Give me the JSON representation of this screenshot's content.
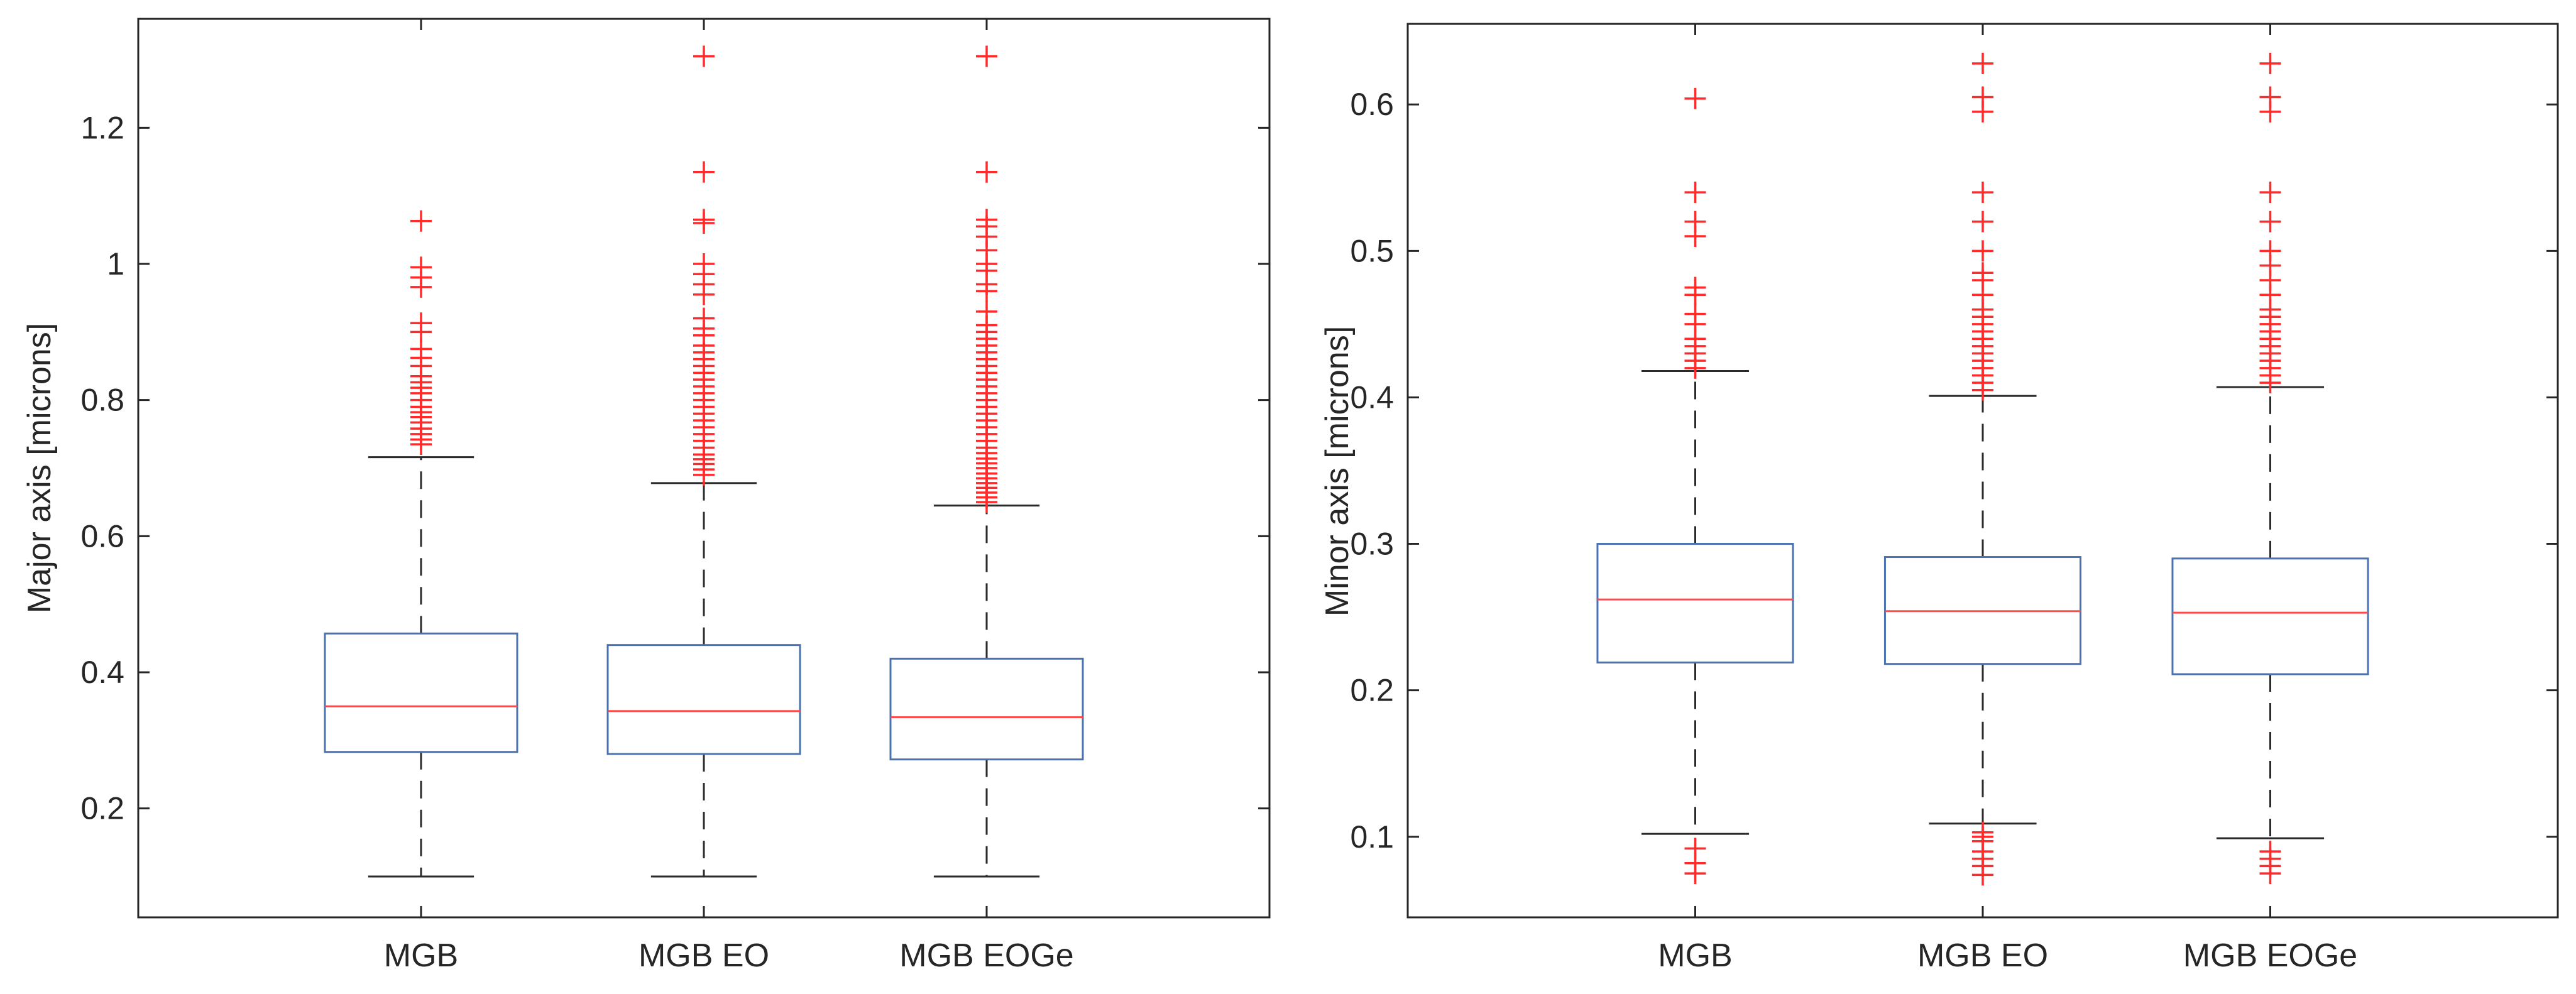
{
  "chart_data": [
    {
      "type": "box",
      "title": "",
      "xlabel": "",
      "ylabel": "Major axis [microns]",
      "ylim": [
        0.04,
        1.36
      ],
      "yticks": [
        0.2,
        0.4,
        0.6,
        0.8,
        1,
        1.2
      ],
      "ytick_labels": [
        "0.2",
        "0.4",
        "0.6",
        "0.8",
        "1",
        "1.2"
      ],
      "grid": false,
      "categories": [
        "MGB",
        "MGB EO",
        "MGB EOGe"
      ],
      "boxes": [
        {
          "name": "MGB",
          "whisker_low": 0.1,
          "q1": 0.283,
          "median": 0.35,
          "q3": 0.457,
          "whisker_high": 0.716,
          "outliers": [
            0.735,
            0.742,
            0.75,
            0.758,
            0.767,
            0.775,
            0.782,
            0.79,
            0.8,
            0.81,
            0.818,
            0.826,
            0.835,
            0.85,
            0.862,
            0.875,
            0.9,
            0.913,
            0.966,
            0.98,
            0.995,
            1.063
          ]
        },
        {
          "name": "MGB EO",
          "whisker_low": 0.1,
          "q1": 0.28,
          "median": 0.343,
          "q3": 0.44,
          "whisker_high": 0.678,
          "outliers": [
            0.69,
            0.698,
            0.706,
            0.713,
            0.72,
            0.73,
            0.74,
            0.75,
            0.76,
            0.77,
            0.78,
            0.79,
            0.8,
            0.81,
            0.82,
            0.83,
            0.84,
            0.85,
            0.86,
            0.87,
            0.88,
            0.895,
            0.905,
            0.92,
            0.955,
            0.97,
            0.985,
            1.0,
            1.06,
            1.065,
            1.135,
            1.305
          ]
        },
        {
          "name": "MGB EOGe",
          "whisker_low": 0.1,
          "q1": 0.272,
          "median": 0.334,
          "q3": 0.42,
          "whisker_high": 0.645,
          "outliers": [
            0.65,
            0.657,
            0.664,
            0.671,
            0.678,
            0.685,
            0.692,
            0.7,
            0.707,
            0.714,
            0.722,
            0.73,
            0.74,
            0.75,
            0.76,
            0.77,
            0.78,
            0.79,
            0.8,
            0.81,
            0.82,
            0.83,
            0.84,
            0.85,
            0.86,
            0.87,
            0.88,
            0.89,
            0.9,
            0.91,
            0.93,
            0.96,
            0.97,
            0.99,
            1.0,
            1.02,
            1.04,
            1.055,
            1.065,
            1.135,
            1.305
          ]
        }
      ]
    },
    {
      "type": "box",
      "title": "",
      "xlabel": "",
      "ylabel": "Minor axis [microns]",
      "ylim": [
        0.045,
        0.655
      ],
      "yticks": [
        0.1,
        0.2,
        0.3,
        0.4,
        0.5,
        0.6
      ],
      "ytick_labels": [
        "0.1",
        "0.2",
        "0.3",
        "0.4",
        "0.5",
        "0.6"
      ],
      "grid": false,
      "categories": [
        "MGB",
        "MGB EO",
        "MGB EOGe"
      ],
      "boxes": [
        {
          "name": "MGB",
          "whisker_low": 0.102,
          "q1": 0.219,
          "median": 0.262,
          "q3": 0.3,
          "whisker_high": 0.418,
          "outliers": [
            0.075,
            0.082,
            0.092,
            0.42,
            0.425,
            0.43,
            0.435,
            0.44,
            0.45,
            0.457,
            0.47,
            0.475,
            0.51,
            0.52,
            0.54,
            0.604
          ]
        },
        {
          "name": "MGB EO",
          "whisker_low": 0.109,
          "q1": 0.218,
          "median": 0.254,
          "q3": 0.291,
          "whisker_high": 0.401,
          "outliers": [
            0.074,
            0.08,
            0.085,
            0.09,
            0.097,
            0.1,
            0.103,
            0.405,
            0.41,
            0.415,
            0.42,
            0.425,
            0.43,
            0.435,
            0.44,
            0.445,
            0.45,
            0.455,
            0.46,
            0.47,
            0.48,
            0.485,
            0.5,
            0.52,
            0.54,
            0.595,
            0.605,
            0.628
          ]
        },
        {
          "name": "MGB EOGe",
          "whisker_low": 0.099,
          "q1": 0.211,
          "median": 0.253,
          "q3": 0.29,
          "whisker_high": 0.407,
          "outliers": [
            0.075,
            0.08,
            0.085,
            0.09,
            0.41,
            0.415,
            0.42,
            0.425,
            0.43,
            0.435,
            0.44,
            0.445,
            0.45,
            0.455,
            0.46,
            0.47,
            0.48,
            0.49,
            0.5,
            0.52,
            0.54,
            0.595,
            0.605,
            0.628
          ]
        }
      ]
    }
  ],
  "colors": {
    "box_edge": "#4a72b0",
    "median": "#ff4a4a",
    "whisker": "#2a2a2a",
    "outlier": "#ff2a2a",
    "axis": "#262626"
  }
}
